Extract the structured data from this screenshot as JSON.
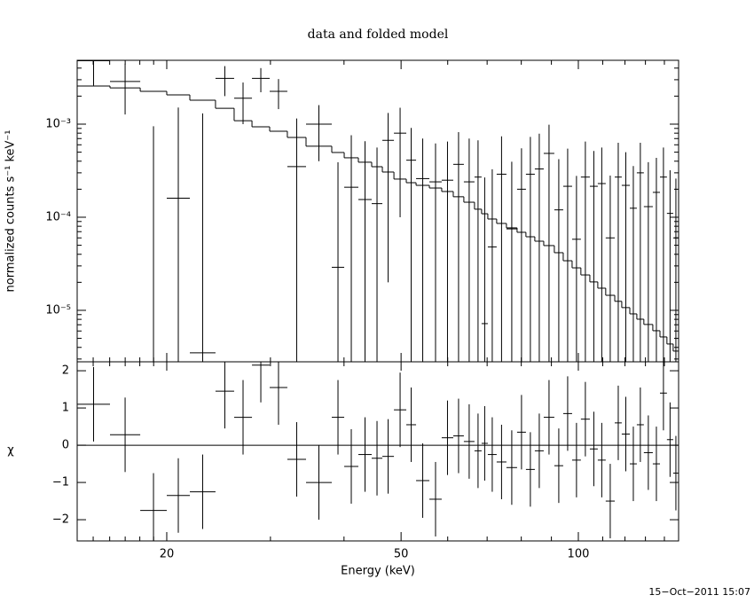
{
  "timestamp": "15−Oct−2011 15:07",
  "chart_data": [
    {
      "type": "spectrum",
      "title": "data and folded model",
      "ylabel": "normalized counts s⁻¹ keV⁻¹",
      "log_x": true,
      "log_y": true,
      "xlim": [
        14.09,
        148.0
      ],
      "xticks": [
        20,
        50,
        100
      ],
      "xminor_ticks": [
        15,
        16,
        17,
        18,
        19,
        30,
        40,
        60,
        70,
        80,
        90,
        110,
        120,
        130,
        140
      ],
      "ylim": [
        2.8e-06,
        0.00485
      ],
      "yticks": [
        {
          "value": 1e-05,
          "label": "10⁻⁵"
        },
        {
          "value": 0.0001,
          "label": "10⁻⁴"
        },
        {
          "value": 0.001,
          "label": "10⁻³"
        }
      ],
      "yminor_ticks": [
        3e-06,
        4e-06,
        5e-06,
        6e-06,
        7e-06,
        8e-06,
        9e-06,
        2e-05,
        3e-05,
        4e-05,
        5e-05,
        6e-05,
        7e-05,
        8e-05,
        9e-05,
        0.0002,
        0.0003,
        0.0004,
        0.0005,
        0.0006,
        0.0007,
        0.0008,
        0.0009,
        0.002,
        0.003,
        0.004
      ],
      "bins": [
        14.09,
        16.02,
        18.03,
        20.0,
        21.89,
        24.2,
        26.03,
        27.91,
        29.91,
        32.05,
        34.48,
        38.13,
        40.03,
        42.31,
        44.57,
        46.47,
        48.62,
        51.03,
        53.02,
        55.85,
        58.61,
        61.32,
        63.91,
        66.63,
        68.5,
        70.19,
        72.66,
        75.49,
        78.7,
        81.47,
        84.35,
        87.34,
        91.04,
        94.26,
        97.59,
        101.0,
        104.6,
        107.9,
        111.3,
        115.3,
        118.5,
        122.3,
        125.7,
        129.2,
        133.8,
        137.6,
        141.4,
        144.9,
        148.0
      ],
      "data": {
        "color": "#000000",
        "values": [
          0.0048,
          0.00287,
          -0.0002,
          0.00016,
          3.5e-06,
          0.0031,
          0.0019,
          0.0031,
          0.00225,
          0.00035,
          0.001,
          2.9e-05,
          0.00021,
          0.000155,
          0.00014,
          0.00067,
          0.0008,
          0.00041,
          0.00026,
          0.00024,
          0.00025,
          0.00037,
          0.00024,
          0.00027,
          7.2e-06,
          4.8e-05,
          0.00029,
          7.5e-05,
          0.0002,
          0.00029,
          0.00033,
          0.000485,
          0.00012,
          0.000215,
          5.8e-05,
          0.00027,
          0.000215,
          0.00023,
          6e-05,
          0.00027,
          0.00022,
          0.000125,
          0.0003,
          0.00013,
          0.000185,
          0.00027,
          0.00011,
          6e-05
        ],
        "errors": [
          0.0022,
          0.0016,
          0.00115,
          0.00135,
          0.0013,
          0.0011,
          0.0009,
          0.0009,
          0.0008,
          0.0008,
          0.0006,
          0.00036,
          0.00055,
          0.0005,
          0.00042,
          0.00065,
          0.0007,
          0.0005,
          0.00044,
          0.00038,
          0.0004,
          0.00045,
          0.00046,
          0.0004,
          0.00026,
          0.00028,
          0.00045,
          0.00032,
          0.00035,
          0.00044,
          0.00046,
          0.0005,
          0.0003,
          0.00033,
          0.00022,
          0.00038,
          0.0003,
          0.00033,
          0.00022,
          0.00036,
          0.00028,
          0.00023,
          0.00033,
          0.00026,
          0.00025,
          0.00029,
          0.00021,
          0.0002
        ]
      },
      "model": {
        "color": "#000000",
        "values": [
          0.00257,
          0.00245,
          0.00225,
          0.00206,
          0.00181,
          0.00148,
          0.00109,
          0.000936,
          0.00084,
          0.00072,
          0.00058,
          0.000496,
          0.000435,
          0.00039,
          0.000349,
          0.000306,
          0.000257,
          0.000235,
          0.00022,
          0.000206,
          0.000189,
          0.000166,
          0.000145,
          0.000122,
          0.000109,
          9.57e-05,
          8.58e-05,
          7.69e-05,
          6.89e-05,
          6.17e-05,
          5.53e-05,
          4.96e-05,
          4.16e-05,
          3.41e-05,
          2.86e-05,
          2.4e-05,
          2.02e-05,
          1.73e-05,
          1.45e-05,
          1.25e-05,
          1.07e-05,
          9.16e-06,
          8.03e-06,
          7.05e-06,
          6.04e-06,
          5.18e-06,
          4.35e-06,
          3.65e-06
        ]
      }
    },
    {
      "type": "residual",
      "ylabel": "χ",
      "xlabel": "Energy (keV)",
      "ylim": [
        -2.57,
        2.24
      ],
      "yticks": [
        {
          "value": -2,
          "label": "−2"
        },
        {
          "value": -1,
          "label": "−1"
        },
        0,
        1,
        2
      ],
      "zero_color": "#33dd33",
      "color": "#000000",
      "error": 1,
      "values": [
        1.1,
        0.28,
        -1.75,
        -1.35,
        -1.25,
        1.45,
        0.75,
        2.15,
        1.55,
        -0.38,
        -1.0,
        0.75,
        -0.57,
        -0.25,
        -0.35,
        -0.3,
        0.95,
        0.55,
        -0.95,
        -1.45,
        0.2,
        0.25,
        0.1,
        -0.15,
        0.05,
        -0.25,
        -0.45,
        -0.6,
        0.35,
        -0.65,
        -0.15,
        0.75,
        -0.55,
        0.85,
        -0.4,
        0.7,
        -0.1,
        -0.4,
        -1.5,
        0.6,
        0.3,
        -0.5,
        0.55,
        -0.2,
        -0.5,
        1.4,
        0.15,
        -0.75
      ]
    }
  ]
}
